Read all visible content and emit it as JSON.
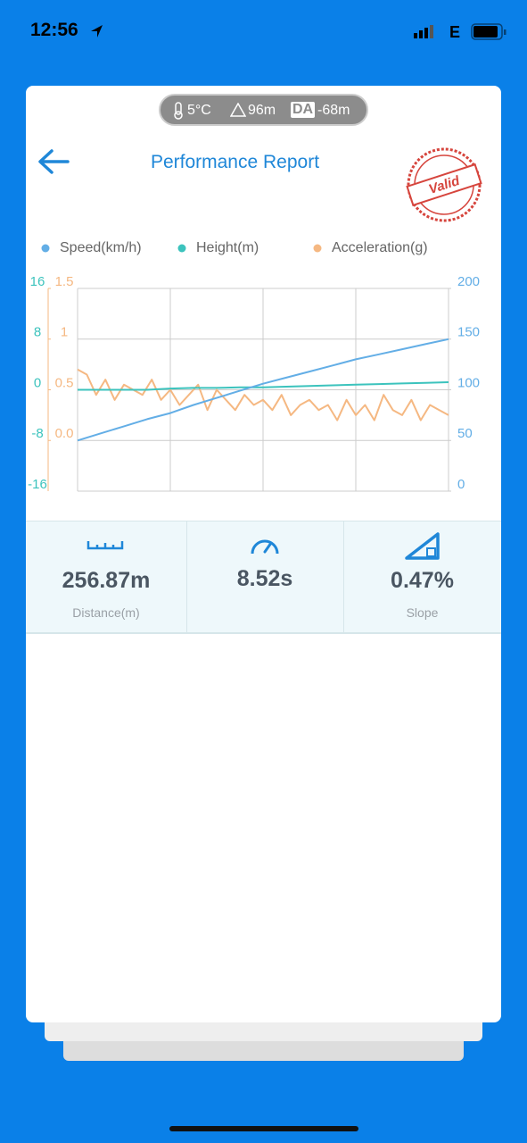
{
  "status_bar": {
    "time": "12:56",
    "network": "E"
  },
  "conditions": {
    "temperature": "5°C",
    "altitude": "96m",
    "da_label": "DA",
    "density_altitude": "-68m"
  },
  "header": {
    "title": "Performance Report",
    "stamp": "Valid"
  },
  "chart_data": {
    "type": "line",
    "grid": true,
    "ylim": [
      -16,
      16
    ],
    "yticks": [
      -16,
      -8,
      0,
      8,
      16
    ],
    "y2lim": [
      0,
      200
    ],
    "y2ticks": [
      0,
      50,
      100,
      150,
      200
    ],
    "y3lim": [
      -0.5,
      1.5
    ],
    "y3ticks": [
      {
        "value": 0,
        "label": "0.0"
      },
      0.5,
      1,
      1.5
    ],
    "series": [
      {
        "name": "Speed(km/h)",
        "color": "#63aee6",
        "axis": "y2",
        "values": [
          50,
          57,
          64,
          71,
          77,
          85,
          92,
          99,
          106,
          112,
          118,
          124,
          130,
          135,
          140,
          145,
          150
        ]
      },
      {
        "name": "Height(m)",
        "color": "#3cc3bd",
        "values": [
          0,
          0,
          0,
          0,
          0.2,
          0.3,
          0.3,
          0.4,
          0.4,
          0.5,
          0.6,
          0.7,
          0.8,
          0.9,
          1.0,
          1.1,
          1.2
        ]
      },
      {
        "name": "Acceleration(g)",
        "color": "#f5b882",
        "axis": "y3",
        "values": [
          0.7,
          0.65,
          0.45,
          0.6,
          0.4,
          0.55,
          0.5,
          0.45,
          0.6,
          0.4,
          0.5,
          0.35,
          0.45,
          0.55,
          0.3,
          0.5,
          0.4,
          0.3,
          0.45,
          0.35,
          0.4,
          0.3,
          0.45,
          0.25,
          0.35,
          0.4,
          0.3,
          0.35,
          0.2,
          0.4,
          0.25,
          0.35,
          0.2,
          0.45,
          0.3,
          0.25,
          0.4,
          0.2,
          0.35,
          0.3,
          0.25
        ]
      }
    ]
  },
  "stats": [
    {
      "value": "256.87m",
      "label": "Distance(m)"
    },
    {
      "value": "8.52s"
    },
    {
      "value": "0.47%",
      "label": "Slope"
    }
  ]
}
